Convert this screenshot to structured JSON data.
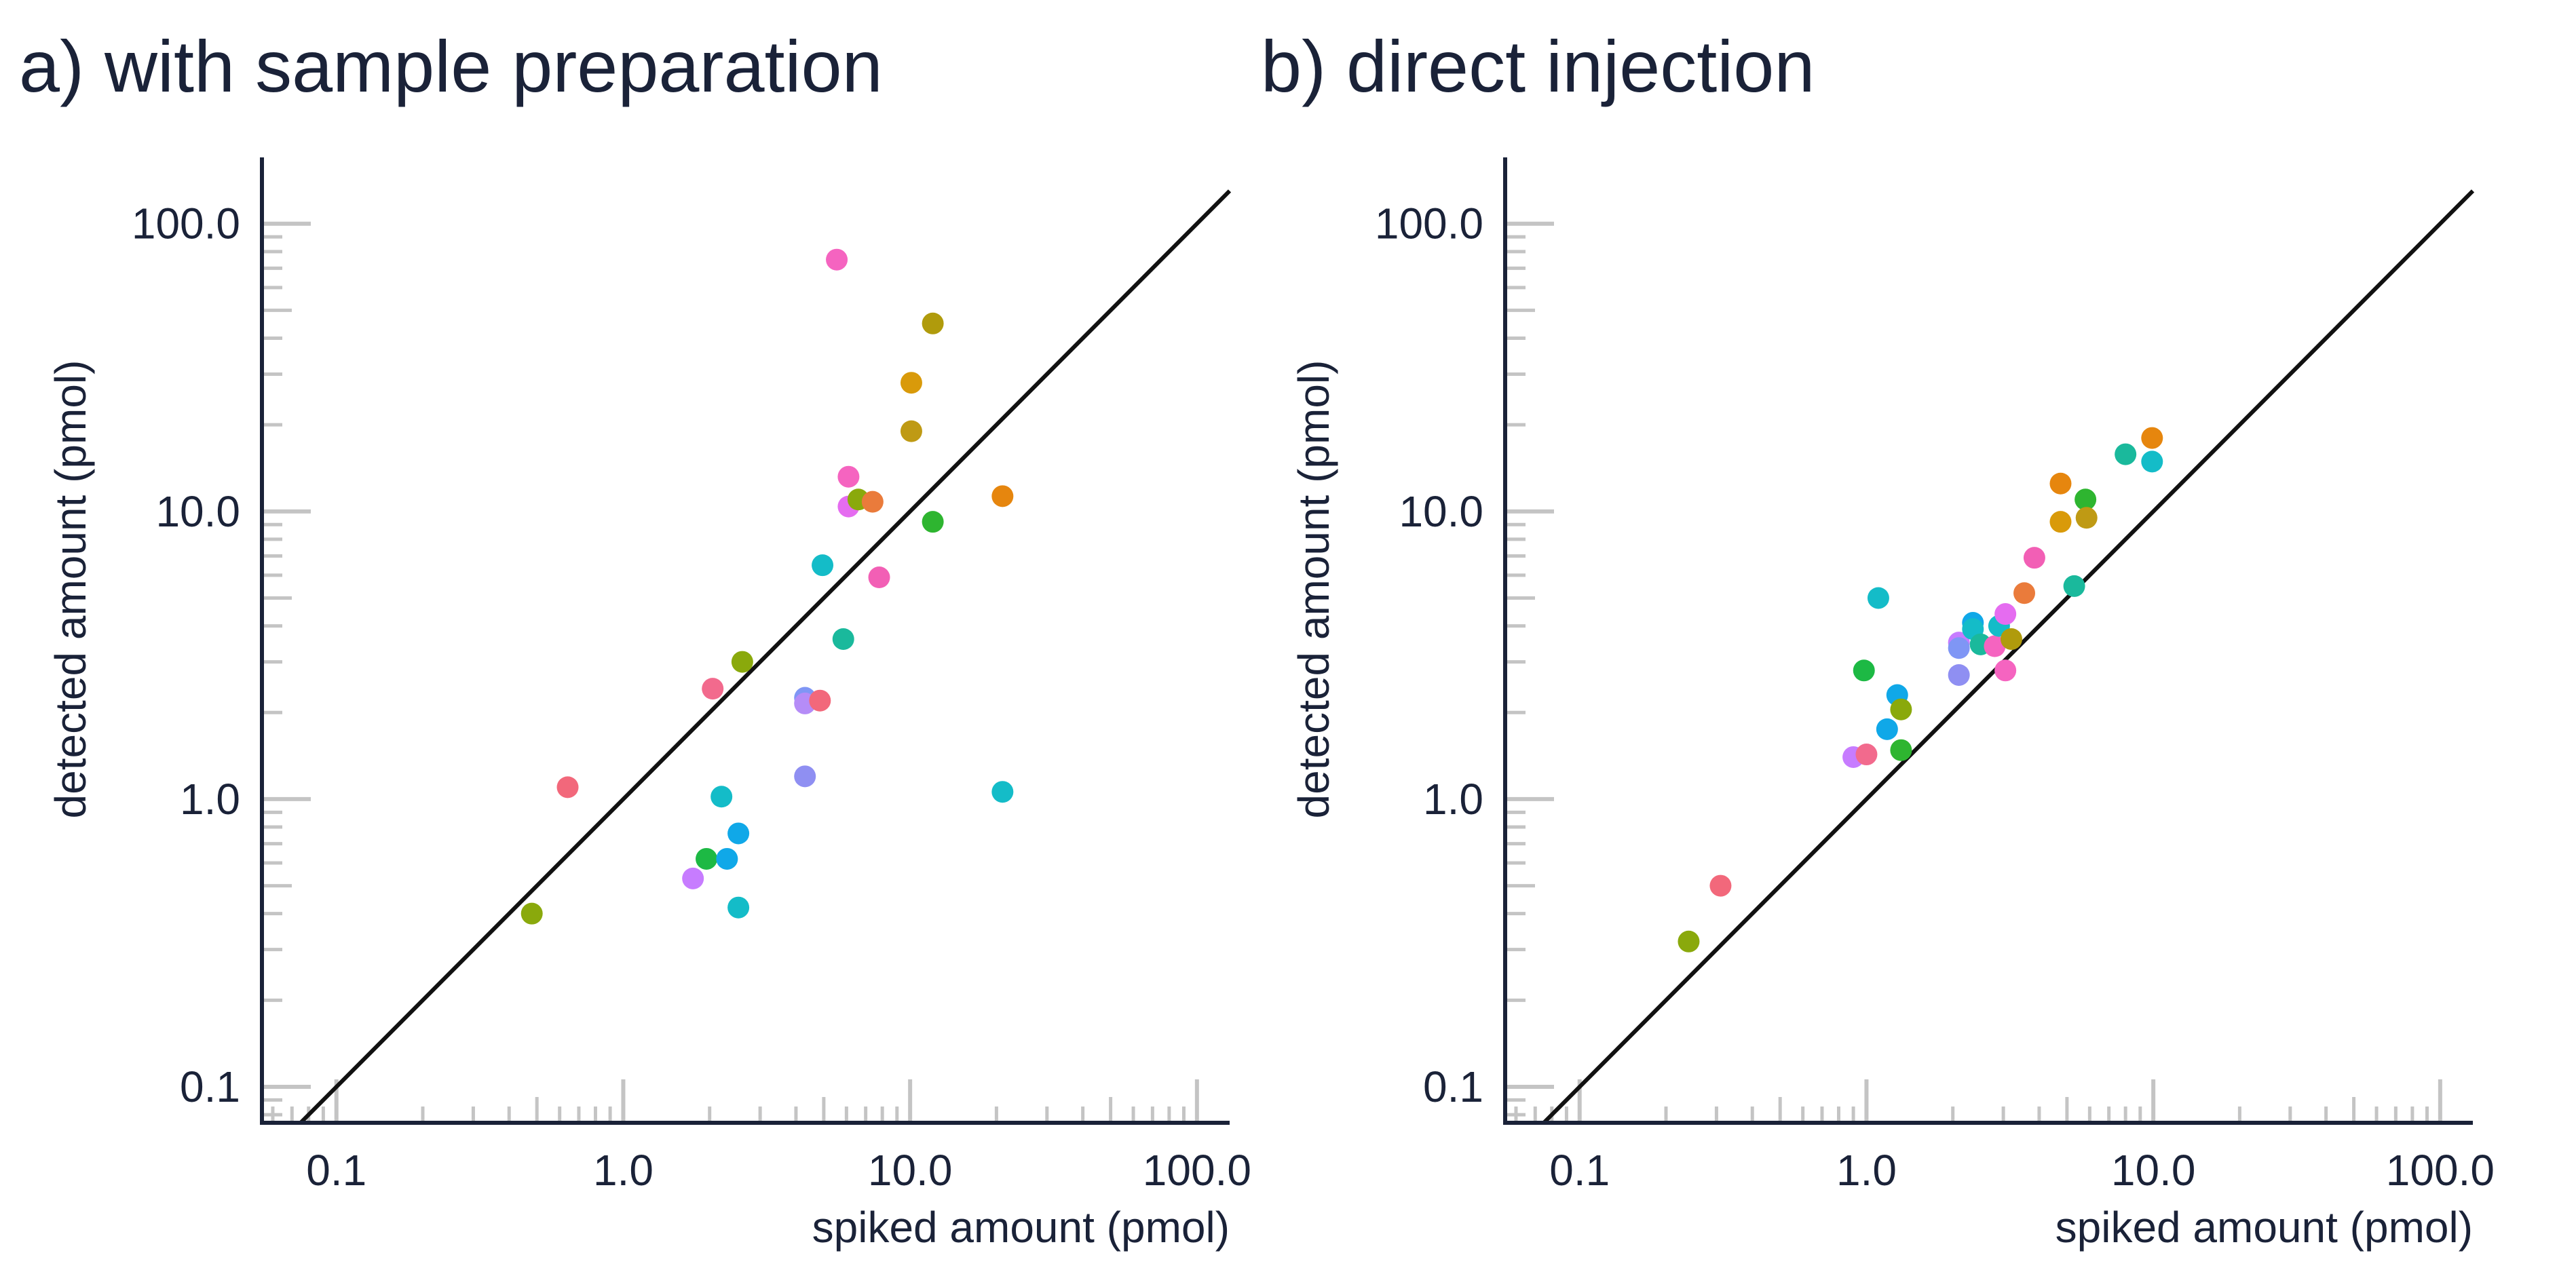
{
  "chart_data": [
    {
      "type": "scatter",
      "title": "a) with sample preparation",
      "xlabel": "spiked amount (pmol)",
      "ylabel": "detected amount (pmol)",
      "xscale": "log",
      "yscale": "log",
      "xlim": [
        0.055,
        130
      ],
      "ylim": [
        0.075,
        170
      ],
      "xticks": [
        0.1,
        1,
        10,
        100
      ],
      "xtick_labels": [
        "0.1",
        "1.0",
        "10.0",
        "100.0"
      ],
      "yticks": [
        0.1,
        1,
        10,
        100
      ],
      "ytick_labels": [
        "0.1",
        "1.0",
        "10.0",
        "100.0"
      ],
      "reference_line": "y = x",
      "grid": false,
      "legend": "none",
      "points": [
        {
          "x": 0.48,
          "y": 0.4,
          "color": "#8aa90c"
        },
        {
          "x": 0.64,
          "y": 1.1,
          "color": "#f2687b"
        },
        {
          "x": 1.75,
          "y": 0.53,
          "color": "#c77cff"
        },
        {
          "x": 1.95,
          "y": 0.62,
          "color": "#1db944"
        },
        {
          "x": 2.05,
          "y": 2.42,
          "color": "#f26a8d"
        },
        {
          "x": 2.2,
          "y": 1.02,
          "color": "#14bcc8"
        },
        {
          "x": 2.3,
          "y": 0.62,
          "color": "#10a8e8"
        },
        {
          "x": 2.52,
          "y": 0.76,
          "color": "#10a8e8"
        },
        {
          "x": 2.52,
          "y": 0.42,
          "color": "#14bcc8"
        },
        {
          "x": 2.6,
          "y": 3.0,
          "color": "#8aa90c"
        },
        {
          "x": 4.3,
          "y": 2.25,
          "color": "#7f96f5"
        },
        {
          "x": 4.3,
          "y": 2.15,
          "color": "#b58cf7"
        },
        {
          "x": 4.3,
          "y": 1.2,
          "color": "#8f8ff2"
        },
        {
          "x": 4.85,
          "y": 2.2,
          "color": "#f2687b"
        },
        {
          "x": 4.95,
          "y": 6.5,
          "color": "#14bcc8"
        },
        {
          "x": 5.55,
          "y": 75,
          "color": "#f564c0"
        },
        {
          "x": 5.85,
          "y": 3.6,
          "color": "#1ab99c"
        },
        {
          "x": 6.1,
          "y": 13.2,
          "color": "#f564c0"
        },
        {
          "x": 6.1,
          "y": 10.4,
          "color": "#e56cf0"
        },
        {
          "x": 6.6,
          "y": 11.0,
          "color": "#8aa90c"
        },
        {
          "x": 7.4,
          "y": 10.8,
          "color": "#ea7b3b"
        },
        {
          "x": 7.8,
          "y": 5.9,
          "color": "#f25fb5"
        },
        {
          "x": 10.1,
          "y": 28,
          "color": "#d99a0a"
        },
        {
          "x": 10.1,
          "y": 19,
          "color": "#bf9a14"
        },
        {
          "x": 12.0,
          "y": 45,
          "color": "#b09b0c"
        },
        {
          "x": 12.0,
          "y": 9.2,
          "color": "#2eb530"
        },
        {
          "x": 21.0,
          "y": 11.3,
          "color": "#e6860e"
        },
        {
          "x": 21.0,
          "y": 1.06,
          "color": "#14bcc8"
        }
      ]
    },
    {
      "type": "scatter",
      "title": "b) direct injection",
      "xlabel": "spiked amount (pmol)",
      "ylabel": "detected amount (pmol)",
      "xscale": "log",
      "yscale": "log",
      "xlim": [
        0.055,
        130
      ],
      "ylim": [
        0.075,
        170
      ],
      "xticks": [
        0.1,
        1,
        10,
        100
      ],
      "xtick_labels": [
        "0.1",
        "1.0",
        "10.0",
        "100.0"
      ],
      "yticks": [
        0.1,
        1,
        10,
        100
      ],
      "ytick_labels": [
        "0.1",
        "1.0",
        "10.0",
        "100.0"
      ],
      "reference_line": "y = x",
      "grid": false,
      "legend": "none",
      "points": [
        {
          "x": 0.24,
          "y": 0.32,
          "color": "#8aa90c"
        },
        {
          "x": 0.31,
          "y": 0.5,
          "color": "#f2687b"
        },
        {
          "x": 0.9,
          "y": 1.4,
          "color": "#c77cff"
        },
        {
          "x": 1.0,
          "y": 1.43,
          "color": "#f26a8d"
        },
        {
          "x": 0.98,
          "y": 2.8,
          "color": "#1db944"
        },
        {
          "x": 1.1,
          "y": 5.0,
          "color": "#14bcc8"
        },
        {
          "x": 1.18,
          "y": 1.75,
          "color": "#10a8e8"
        },
        {
          "x": 1.28,
          "y": 2.3,
          "color": "#10a8e8"
        },
        {
          "x": 1.32,
          "y": 2.05,
          "color": "#8aa90c"
        },
        {
          "x": 1.32,
          "y": 1.48,
          "color": "#2eb530"
        },
        {
          "x": 2.1,
          "y": 3.5,
          "color": "#c77cff"
        },
        {
          "x": 2.1,
          "y": 3.35,
          "color": "#7f96f5"
        },
        {
          "x": 2.1,
          "y": 2.7,
          "color": "#8f8ff2"
        },
        {
          "x": 2.35,
          "y": 4.1,
          "color": "#10a8e8"
        },
        {
          "x": 2.35,
          "y": 3.9,
          "color": "#14bcc8"
        },
        {
          "x": 2.5,
          "y": 3.45,
          "color": "#1ab99c"
        },
        {
          "x": 2.8,
          "y": 3.4,
          "color": "#f564c0"
        },
        {
          "x": 2.9,
          "y": 4.0,
          "color": "#14bcc8"
        },
        {
          "x": 3.05,
          "y": 4.4,
          "color": "#e56cf0"
        },
        {
          "x": 3.05,
          "y": 2.8,
          "color": "#f564c0"
        },
        {
          "x": 3.2,
          "y": 3.6,
          "color": "#b09b0c"
        },
        {
          "x": 3.55,
          "y": 5.2,
          "color": "#ea7b3b"
        },
        {
          "x": 3.85,
          "y": 6.9,
          "color": "#f25fb5"
        },
        {
          "x": 4.75,
          "y": 12.5,
          "color": "#e6860e"
        },
        {
          "x": 4.75,
          "y": 9.2,
          "color": "#d99a0a"
        },
        {
          "x": 5.3,
          "y": 5.5,
          "color": "#1ab99c"
        },
        {
          "x": 5.8,
          "y": 11.0,
          "color": "#2eb530"
        },
        {
          "x": 5.85,
          "y": 9.5,
          "color": "#bf9a14"
        },
        {
          "x": 8.0,
          "y": 15.8,
          "color": "#1ab99c"
        },
        {
          "x": 9.9,
          "y": 18.0,
          "color": "#e6860e"
        },
        {
          "x": 9.9,
          "y": 14.9,
          "color": "#14bcc8"
        }
      ]
    }
  ]
}
